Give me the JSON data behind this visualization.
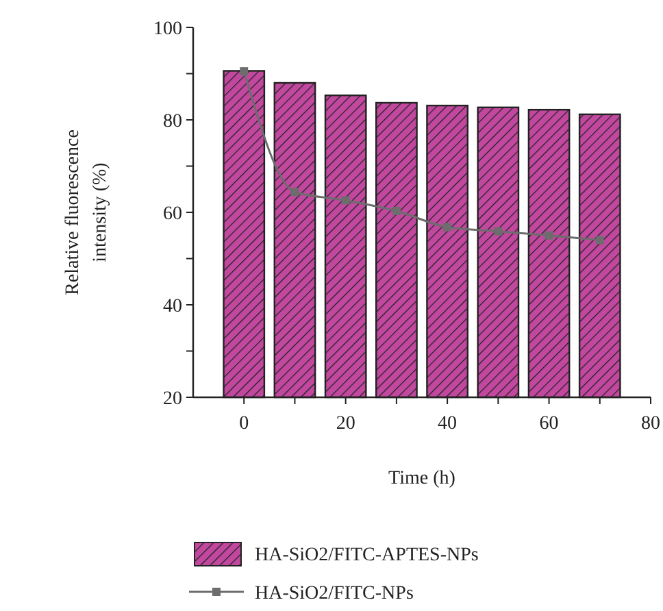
{
  "chart_data": {
    "type": "bar",
    "xlabel": "Time (h)",
    "ylabel": "Relative fluorescence intensity (%)",
    "x": [
      0,
      10,
      20,
      30,
      40,
      50,
      60,
      70
    ],
    "series": [
      {
        "name": "HA-SiO2/FITC-APTES-NPs",
        "color": "#c2489f",
        "values": [
          90.6,
          88.0,
          85.3,
          83.7,
          83.1,
          82.7,
          82.2,
          81.2
        ]
      },
      {
        "name": "HA-SiO2/FITC-NPs",
        "type": "line",
        "color": "#6d6d6d",
        "marker": "square",
        "values": [
          90.5,
          64.4,
          62.6,
          60.3,
          56.8,
          55.9,
          55.0,
          54.0
        ]
      }
    ],
    "xlim": [
      -10,
      80
    ],
    "xticks": [
      0,
      {
        "value": 10,
        "label": null
      },
      20,
      {
        "value": 30,
        "label": null
      },
      40,
      {
        "value": 50,
        "label": null
      },
      60,
      {
        "value": 70,
        "label": null
      },
      80
    ],
    "ylim": [
      20,
      100
    ],
    "yticks": [
      20,
      {
        "value": 30,
        "label": null
      },
      40,
      {
        "value": 50,
        "label": null
      },
      60,
      {
        "value": 70,
        "label": null
      },
      80,
      {
        "value": 90,
        "label": null
      },
      100
    ],
    "legend": "bottom",
    "grid": false
  }
}
